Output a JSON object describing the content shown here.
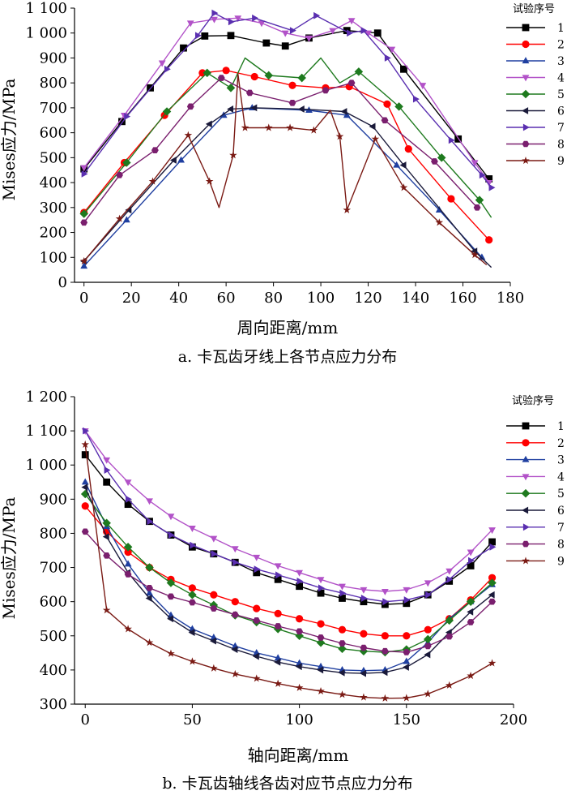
{
  "colors": {
    "1": "#000000",
    "2": "#ff0000",
    "3": "#1f3fa0",
    "4": "#b252c8",
    "5": "#1e7a1e",
    "6": "#1a1a3a",
    "7": "#5a2fb0",
    "8": "#7a1f6e",
    "9": "#7a1a14"
  },
  "markers": {
    "1": "square",
    "2": "circle",
    "3": "triangle-up",
    "4": "triangle-down",
    "5": "diamond",
    "6": "triangle-left",
    "7": "triangle-right",
    "8": "hexagon",
    "9": "star"
  },
  "chart_data": [
    {
      "type": "line",
      "caption": "a. 卡瓦齿牙线上各节点应力分布",
      "xlabel": "周向距离/mm",
      "ylabel": "Mises应力/MPa",
      "xlim": [
        -4,
        180
      ],
      "ylim": [
        0,
        1100
      ],
      "xticks": [
        0,
        20,
        40,
        60,
        80,
        100,
        120,
        140,
        160,
        180
      ],
      "yticks": [
        0,
        100,
        200,
        300,
        400,
        500,
        600,
        700,
        800,
        900,
        1000,
        1100
      ],
      "yticklabels": [
        "0",
        "100",
        "200",
        "300",
        "400",
        "500",
        "600",
        "700",
        "800",
        "900",
        "1 000",
        "1 100"
      ],
      "legend_title": "试验序号",
      "legend_position": "right",
      "grid": false,
      "series": [
        {
          "name": "1",
          "x": [
            0,
            16,
            28,
            42,
            51,
            62,
            77,
            85,
            95,
            111,
            124,
            135,
            158,
            171
          ],
          "y": [
            455,
            645,
            780,
            940,
            988,
            990,
            960,
            948,
            980,
            1010,
            1000,
            855,
            575,
            415
          ],
          "mx": [
            0,
            16,
            28,
            42,
            51,
            62,
            77,
            85,
            95,
            111,
            124,
            135,
            158,
            171
          ]
        },
        {
          "name": "2",
          "x": [
            0,
            17,
            34,
            50,
            60,
            72,
            88,
            102,
            112,
            128,
            137,
            155,
            171
          ],
          "y": [
            280,
            480,
            670,
            840,
            850,
            825,
            790,
            780,
            785,
            715,
            535,
            335,
            170
          ],
          "mx": [
            0,
            17,
            34,
            50,
            60,
            72,
            88,
            102,
            112,
            128,
            137,
            155,
            171
          ]
        },
        {
          "name": "3",
          "x": [
            0,
            18,
            41,
            59,
            71,
            95,
            111,
            132,
            150,
            168
          ],
          "y": [
            65,
            250,
            490,
            670,
            700,
            690,
            670,
            470,
            290,
            100
          ],
          "mx": [
            0,
            18,
            41,
            59,
            71,
            95,
            111,
            132,
            150,
            168
          ]
        },
        {
          "name": "4",
          "x": [
            0,
            17,
            33,
            45,
            55,
            65,
            75,
            85,
            95,
            105,
            113,
            120,
            130,
            143,
            165,
            171
          ],
          "y": [
            460,
            670,
            880,
            1040,
            1055,
            1060,
            1040,
            1000,
            980,
            1010,
            1050,
            1000,
            935,
            790,
            480,
            400
          ],
          "mx": [
            0,
            17,
            33,
            45,
            55,
            65,
            75,
            85,
            95,
            105,
            113,
            120,
            130,
            143,
            165,
            171
          ]
        },
        {
          "name": "5",
          "x": [
            0,
            18,
            35,
            52,
            62,
            68,
            78,
            92,
            100,
            108,
            116,
            133,
            151,
            167,
            172
          ],
          "y": [
            275,
            480,
            685,
            840,
            780,
            900,
            830,
            820,
            900,
            800,
            845,
            705,
            500,
            330,
            260
          ],
          "mx": [
            0,
            18,
            35,
            52,
            62,
            78,
            92,
            116,
            133,
            151,
            167
          ]
        },
        {
          "name": "6",
          "x": [
            0,
            19,
            38,
            53,
            62,
            72,
            92,
            110,
            122,
            135,
            165,
            172
          ],
          "y": [
            85,
            290,
            490,
            635,
            695,
            700,
            695,
            685,
            625,
            470,
            125,
            60
          ],
          "mx": [
            0,
            19,
            38,
            53,
            62,
            72,
            92,
            110,
            122,
            135,
            165
          ]
        },
        {
          "name": "7",
          "x": [
            0,
            18,
            35,
            48,
            55,
            62,
            72,
            88,
            98,
            112,
            118,
            128,
            140,
            155,
            168,
            172
          ],
          "y": [
            435,
            665,
            855,
            990,
            1080,
            1045,
            1060,
            1010,
            1070,
            1000,
            1010,
            900,
            735,
            570,
            430,
            380
          ],
          "mx": [
            0,
            18,
            35,
            48,
            55,
            62,
            72,
            88,
            98,
            112,
            118,
            128,
            140,
            155,
            168,
            172
          ]
        },
        {
          "name": "8",
          "x": [
            0,
            15,
            30,
            45,
            58,
            70,
            88,
            102,
            113,
            127,
            148,
            166
          ],
          "y": [
            240,
            430,
            530,
            705,
            820,
            760,
            720,
            770,
            800,
            650,
            485,
            300
          ],
          "mx": [
            0,
            15,
            30,
            45,
            58,
            70,
            88,
            102,
            113,
            127,
            148,
            166
          ]
        },
        {
          "name": "9",
          "x": [
            0,
            15,
            29,
            44,
            53,
            57,
            63,
            65,
            68,
            78,
            87,
            97,
            104,
            108,
            111,
            123,
            135,
            150,
            165,
            170
          ],
          "y": [
            85,
            255,
            405,
            590,
            405,
            300,
            510,
            835,
            620,
            620,
            620,
            610,
            690,
            585,
            290,
            575,
            380,
            240,
            110,
            70
          ],
          "mx": [
            0,
            15,
            29,
            44,
            53,
            63,
            68,
            78,
            87,
            97,
            108,
            111,
            123,
            135,
            150,
            165
          ]
        }
      ]
    },
    {
      "type": "line",
      "caption": "b. 卡瓦齿轴线各齿对应节点应力分布",
      "xlabel": "轴向距离/mm",
      "ylabel": "Mises应力/MPa",
      "xlim": [
        -5,
        200
      ],
      "ylim": [
        300,
        1200
      ],
      "xticks": [
        0,
        50,
        100,
        150,
        200
      ],
      "yticks": [
        300,
        400,
        500,
        600,
        700,
        800,
        900,
        1000,
        1100,
        1200
      ],
      "yticklabels": [
        "300",
        "400",
        "500",
        "600",
        "700",
        "800",
        "900",
        "1 000",
        "1 100",
        "1 200"
      ],
      "legend_title": "试验序号",
      "legend_position": "right",
      "grid": false,
      "x": [
        0,
        10,
        20,
        30,
        40,
        50,
        60,
        70,
        80,
        90,
        100,
        110,
        120,
        130,
        140,
        150,
        160,
        170,
        180,
        190
      ],
      "series": [
        {
          "name": "1",
          "values": [
            1030,
            950,
            885,
            835,
            795,
            760,
            740,
            715,
            685,
            665,
            645,
            625,
            610,
            600,
            592,
            595,
            620,
            660,
            705,
            775
          ]
        },
        {
          "name": "2",
          "values": [
            880,
            805,
            745,
            700,
            665,
            640,
            620,
            600,
            580,
            565,
            550,
            535,
            518,
            506,
            500,
            500,
            518,
            550,
            605,
            670
          ]
        },
        {
          "name": "3",
          "values": [
            950,
            820,
            710,
            625,
            560,
            520,
            495,
            470,
            450,
            435,
            420,
            410,
            400,
            398,
            400,
            425,
            480,
            550,
            600,
            650
          ]
        },
        {
          "name": "4",
          "values": [
            1100,
            1015,
            950,
            895,
            850,
            815,
            785,
            755,
            730,
            705,
            685,
            665,
            645,
            635,
            630,
            635,
            655,
            690,
            745,
            810
          ]
        },
        {
          "name": "5",
          "values": [
            915,
            830,
            760,
            700,
            655,
            620,
            590,
            560,
            540,
            520,
            500,
            480,
            462,
            455,
            452,
            460,
            490,
            545,
            600,
            655
          ]
        },
        {
          "name": "6",
          "values": [
            935,
            790,
            685,
            610,
            550,
            510,
            485,
            460,
            440,
            423,
            410,
            400,
            392,
            390,
            393,
            408,
            445,
            510,
            570,
            620
          ]
        },
        {
          "name": "7",
          "values": [
            1100,
            985,
            900,
            835,
            795,
            765,
            740,
            715,
            695,
            678,
            660,
            640,
            625,
            610,
            600,
            605,
            620,
            665,
            720,
            760
          ]
        },
        {
          "name": "8",
          "values": [
            805,
            735,
            680,
            640,
            615,
            598,
            580,
            562,
            545,
            528,
            513,
            495,
            478,
            465,
            455,
            452,
            470,
            498,
            540,
            600
          ]
        },
        {
          "name": "9",
          "values": [
            1060,
            575,
            520,
            480,
            448,
            425,
            405,
            388,
            375,
            360,
            348,
            338,
            328,
            320,
            317,
            318,
            330,
            355,
            383,
            420
          ]
        }
      ]
    }
  ]
}
